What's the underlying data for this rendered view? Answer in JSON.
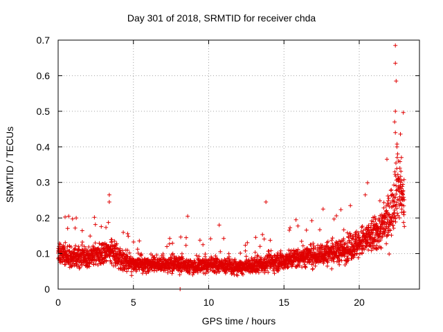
{
  "chart_data": {
    "type": "scatter",
    "title": "Day 301 of 2018, SRMTID for receiver chda",
    "xlabel": "GPS time / hours",
    "ylabel": "SRMTID / TECUs",
    "xlim": [
      0,
      24
    ],
    "ylim": [
      0,
      0.7
    ],
    "xticks": [
      0,
      5,
      10,
      15,
      20
    ],
    "yticks": [
      0,
      0.1,
      0.2,
      0.3,
      0.4,
      0.5,
      0.6,
      0.7
    ],
    "grid": true,
    "marker": "+",
    "color": "#e00000",
    "series": [
      {
        "name": "SRMTID",
        "x_range": [
          0,
          23.0
        ],
        "x_step_hours": 0.0083,
        "baseline_profile": {
          "x": [
            0,
            1,
            2,
            3,
            3.5,
            4,
            5,
            6,
            7,
            8,
            9,
            10,
            11,
            12,
            13,
            14,
            15,
            16,
            17,
            18,
            19,
            20,
            21,
            21.5,
            22,
            22.3,
            22.5,
            23
          ],
          "y": [
            0.1,
            0.09,
            0.09,
            0.1,
            0.11,
            0.09,
            0.07,
            0.07,
            0.07,
            0.07,
            0.065,
            0.07,
            0.065,
            0.06,
            0.065,
            0.075,
            0.08,
            0.09,
            0.095,
            0.1,
            0.11,
            0.13,
            0.15,
            0.17,
            0.2,
            0.25,
            0.3,
            0.24
          ]
        },
        "notable_points": [
          {
            "x": 0.7,
            "y": 0.205
          },
          {
            "x": 1.2,
            "y": 0.2
          },
          {
            "x": 3.4,
            "y": 0.265
          },
          {
            "x": 3.4,
            "y": 0.245
          },
          {
            "x": 8.1,
            "y": 0.0
          },
          {
            "x": 8.6,
            "y": 0.205
          },
          {
            "x": 10.7,
            "y": 0.18
          },
          {
            "x": 13.8,
            "y": 0.245
          },
          {
            "x": 15.8,
            "y": 0.195
          },
          {
            "x": 17.6,
            "y": 0.225
          },
          {
            "x": 20.4,
            "y": 0.265
          },
          {
            "x": 22.4,
            "y": 0.685
          },
          {
            "x": 22.4,
            "y": 0.635
          },
          {
            "x": 22.45,
            "y": 0.585
          },
          {
            "x": 22.4,
            "y": 0.5
          },
          {
            "x": 22.35,
            "y": 0.47
          },
          {
            "x": 22.4,
            "y": 0.44
          },
          {
            "x": 22.5,
            "y": 0.4
          },
          {
            "x": 22.55,
            "y": 0.38
          },
          {
            "x": 22.6,
            "y": 0.36
          },
          {
            "x": 22.7,
            "y": 0.34
          },
          {
            "x": 22.8,
            "y": 0.37
          },
          {
            "x": 22.75,
            "y": 0.3
          },
          {
            "x": 22.9,
            "y": 0.25
          }
        ]
      }
    ]
  }
}
